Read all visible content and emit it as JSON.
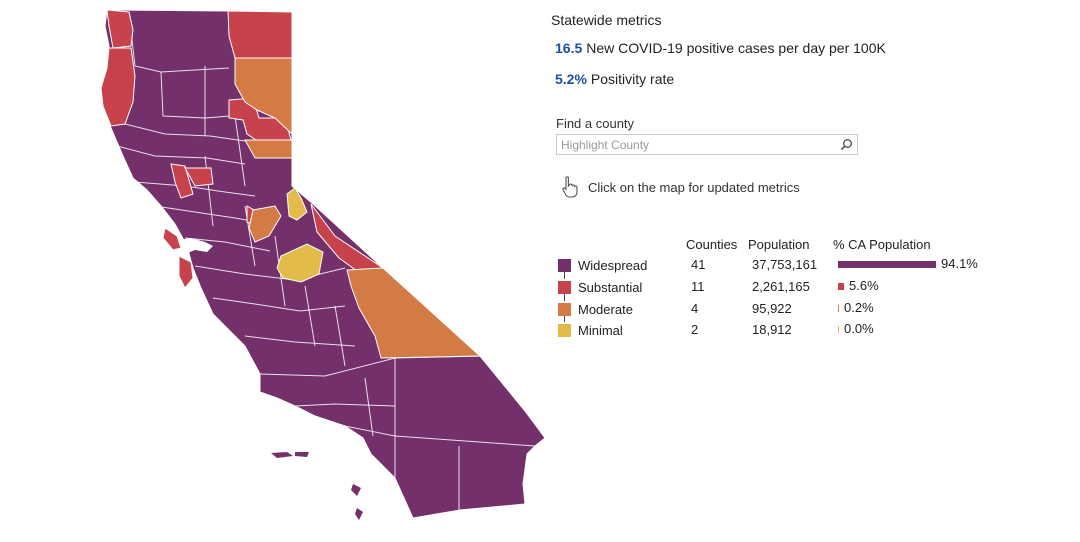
{
  "metrics": {
    "title": "Statewide metrics",
    "cases_value": "16.5",
    "cases_label": "New COVID-19 positive cases per day per 100K",
    "positivity_value": "5.2%",
    "positivity_label": "Positivity rate"
  },
  "search": {
    "label": "Find a county",
    "placeholder": "Highlight County",
    "icon": "search-icon"
  },
  "note": {
    "icon": "pointing-hand-icon",
    "text": "Click on the map for updated metrics"
  },
  "table": {
    "headers": {
      "counties": "Counties",
      "population": "Population",
      "share": "% CA Population"
    },
    "rows": [
      {
        "tier": "Widespread",
        "color": "#74306a",
        "counties": "41",
        "population": "37,753,161",
        "share_label": "94.1%",
        "share": 94.1
      },
      {
        "tier": "Substantial",
        "color": "#c8424b",
        "counties": "11",
        "population": "2,261,165",
        "share_label": "5.6%",
        "share": 5.6
      },
      {
        "tier": "Moderate",
        "color": "#d37a45",
        "counties": "4",
        "population": "95,922",
        "share_label": "0.2%",
        "share": 0.2
      },
      {
        "tier": "Minimal",
        "color": "#e3bb4a",
        "counties": "2",
        "population": "18,912",
        "share_label": "0.0%",
        "share": 0.0
      }
    ]
  },
  "map": {
    "region": "California counties",
    "border_color": "#ffffff"
  }
}
